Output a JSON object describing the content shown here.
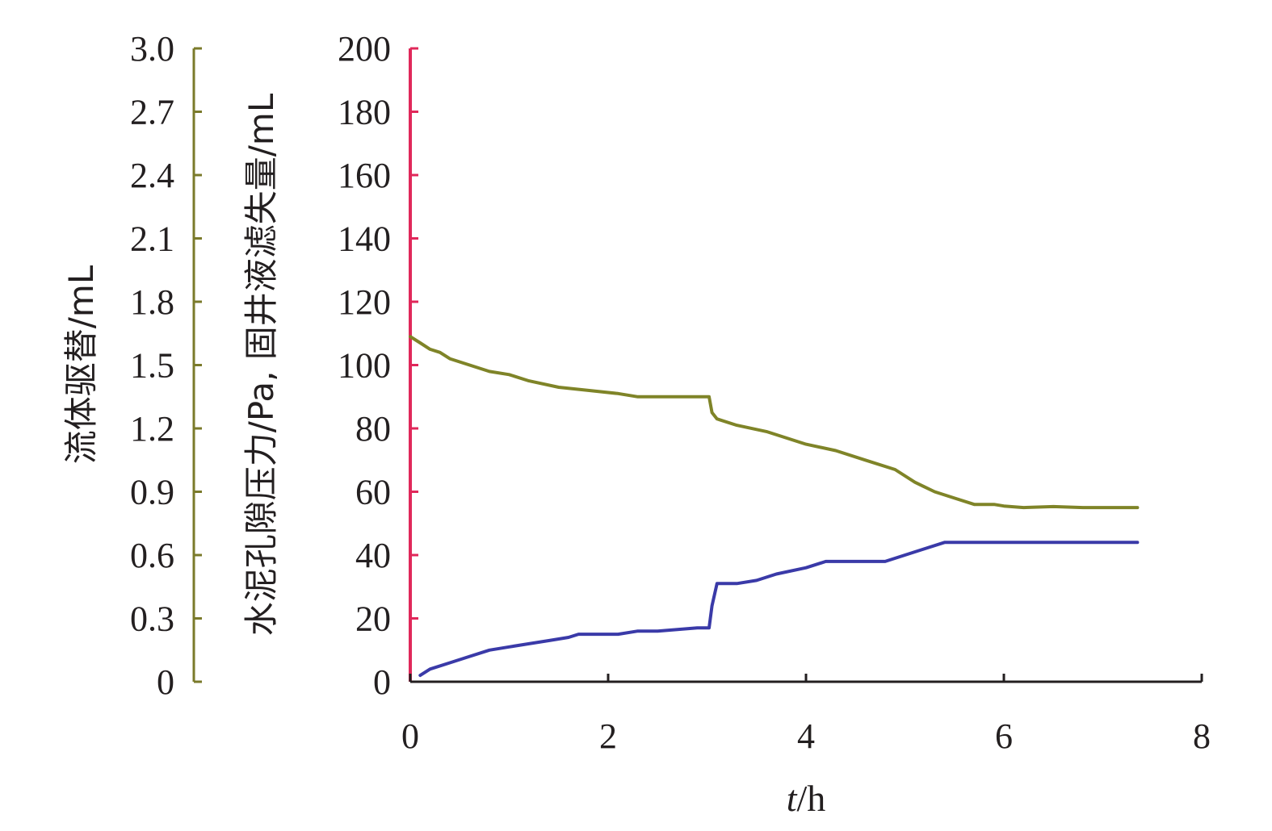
{
  "chart_data": {
    "type": "line",
    "x_axis": {
      "label_italic": "t",
      "label_rest": "/h",
      "range": [
        0,
        8
      ],
      "ticks": [
        0,
        2,
        4,
        6,
        8
      ],
      "tick_labels": [
        "0",
        "2",
        "4",
        "6",
        "8"
      ]
    },
    "y_axes": [
      {
        "id": "outer",
        "label": "流体驱替/mL",
        "range": [
          0,
          3.0
        ],
        "tick_labels": [
          "0",
          "0.3",
          "0.6",
          "0.9",
          "1.2",
          "1.5",
          "1.8",
          "2.1",
          "2.4",
          "2.7",
          "3.0"
        ],
        "color": "#7a7a2a"
      },
      {
        "id": "inner",
        "label": "水泥孔隙压力/Pa, 固井液滤失量/mL",
        "range": [
          0,
          200
        ],
        "tick_labels": [
          "0",
          "20",
          "40",
          "60",
          "80",
          "100",
          "120",
          "140",
          "160",
          "180",
          "200"
        ],
        "color": "#e0285a"
      }
    ],
    "series": [
      {
        "axis": "inner",
        "color": "#7f8428",
        "x": [
          0.0,
          0.1,
          0.2,
          0.3,
          0.4,
          0.6,
          0.8,
          1.0,
          1.2,
          1.5,
          1.8,
          2.1,
          2.3,
          2.6,
          2.9,
          3.02,
          3.05,
          3.1,
          3.3,
          3.6,
          4.0,
          4.3,
          4.6,
          4.9,
          5.1,
          5.3,
          5.5,
          5.7,
          5.9,
          6.0,
          6.2,
          6.5,
          6.8,
          7.0,
          7.35
        ],
        "y": [
          109,
          107,
          105,
          104,
          102,
          100,
          98,
          97,
          95,
          93,
          92,
          91,
          90,
          90,
          90,
          90,
          85,
          83,
          81,
          79,
          75,
          73,
          70,
          67,
          63,
          60,
          58,
          56,
          56,
          55.5,
          55,
          55.3,
          55,
          55,
          55
        ]
      },
      {
        "axis": "inner",
        "color": "#3a3aa8",
        "x": [
          0.1,
          0.2,
          0.4,
          0.6,
          0.8,
          1.0,
          1.2,
          1.4,
          1.6,
          1.7,
          1.9,
          2.1,
          2.3,
          2.5,
          2.7,
          2.9,
          3.02,
          3.05,
          3.1,
          3.3,
          3.5,
          3.7,
          4.0,
          4.2,
          4.5,
          4.8,
          5.0,
          5.2,
          5.4,
          5.5,
          5.6,
          5.8,
          6.0,
          6.2,
          6.5,
          7.0,
          7.35
        ],
        "y": [
          2,
          4,
          6,
          8,
          10,
          11,
          12,
          13,
          14,
          15,
          15,
          15,
          16,
          16,
          16.5,
          17,
          17,
          24,
          31,
          31,
          32,
          34,
          36,
          38,
          38,
          38,
          40,
          42,
          44,
          44,
          44,
          44,
          44,
          44,
          44,
          44,
          44
        ]
      }
    ]
  }
}
